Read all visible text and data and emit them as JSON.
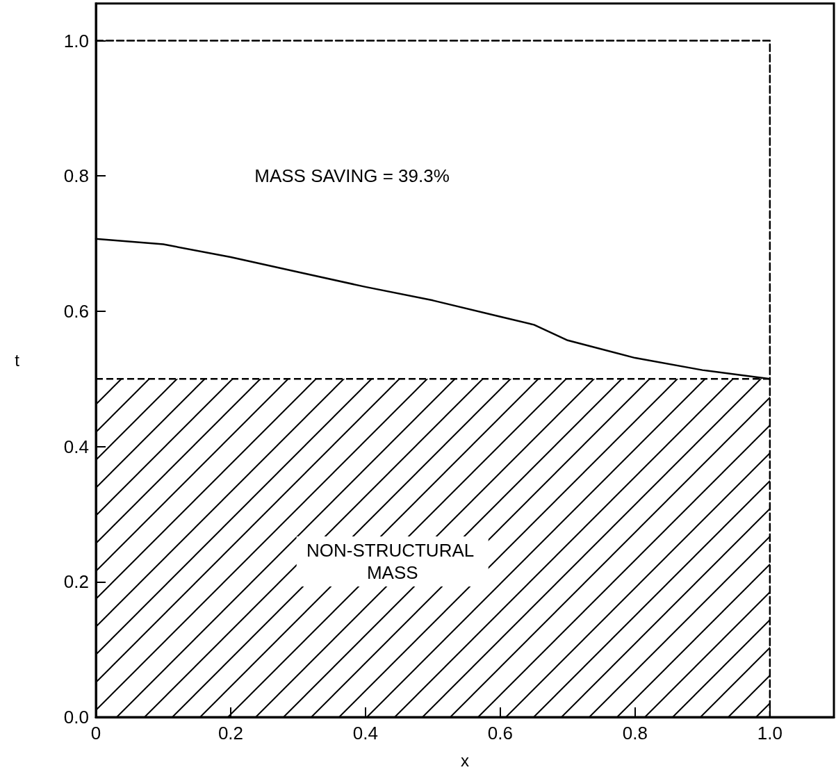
{
  "chart_data": {
    "type": "line",
    "xlabel": "x",
    "ylabel": "t",
    "xlim": [
      0,
      1.095
    ],
    "ylim": [
      0,
      1.055
    ],
    "xticks": [
      {
        "value": 0,
        "label": "0"
      },
      0.2,
      0.4,
      0.6,
      0.8,
      {
        "value": 1,
        "label": "1.0"
      }
    ],
    "yticks": [
      {
        "value": 0,
        "label": "0.0"
      },
      0.2,
      0.4,
      0.6,
      0.8,
      {
        "value": 1,
        "label": "1.0"
      }
    ],
    "grid": false,
    "marker": "none",
    "annotations": [
      "MASS SAVING = 39.3%",
      "NON-STRUCTURAL MASS"
    ],
    "series": [
      {
        "type": "area",
        "color": "#000000",
        "line_style": "dashed",
        "x": [
          0,
          1
        ],
        "values": [
          0.5,
          0.5
        ]
      },
      {
        "color": "#000000",
        "line_style": "solid",
        "x": [
          0,
          0.1,
          0.2,
          0.3,
          0.4,
          0.5,
          0.6,
          0.65,
          0.7,
          0.8,
          0.9,
          1
        ],
        "values": [
          0.707,
          0.699,
          0.68,
          0.658,
          0.636,
          0.616,
          0.592,
          0.58,
          0.557,
          0.531,
          0.513,
          0.5
        ]
      },
      {
        "color": "#000000",
        "line_style": "dashed",
        "x": [
          0,
          1,
          1
        ],
        "values": [
          1,
          1,
          0
        ]
      }
    ]
  }
}
